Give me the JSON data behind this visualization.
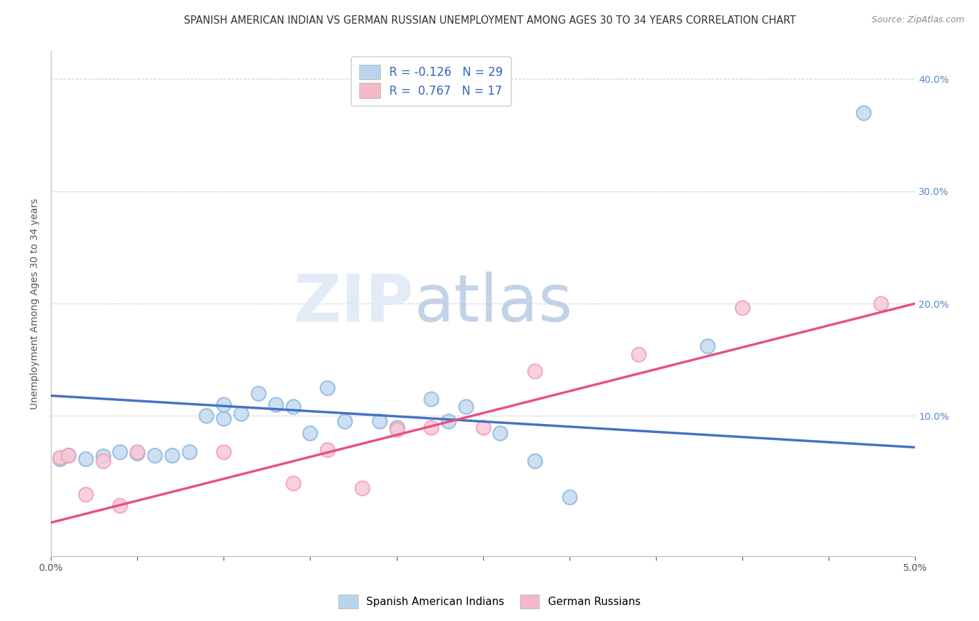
{
  "title": "SPANISH AMERICAN INDIAN VS GERMAN RUSSIAN UNEMPLOYMENT AMONG AGES 30 TO 34 YEARS CORRELATION CHART",
  "source": "Source: ZipAtlas.com",
  "ylabel": "Unemployment Among Ages 30 to 34 years",
  "ytick_labels": [
    "10.0%",
    "20.0%",
    "30.0%",
    "40.0%"
  ],
  "ytick_values": [
    0.1,
    0.2,
    0.3,
    0.4
  ],
  "xmin": 0.0,
  "xmax": 0.05,
  "ymin": -0.025,
  "ymax": 0.425,
  "blue_scatter_x": [
    0.0005,
    0.001,
    0.002,
    0.003,
    0.004,
    0.005,
    0.006,
    0.007,
    0.008,
    0.009,
    0.01,
    0.01,
    0.011,
    0.012,
    0.013,
    0.014,
    0.015,
    0.016,
    0.017,
    0.019,
    0.02,
    0.022,
    0.023,
    0.024,
    0.026,
    0.028,
    0.03,
    0.038,
    0.047
  ],
  "blue_scatter_y": [
    0.062,
    0.065,
    0.062,
    0.064,
    0.068,
    0.067,
    0.065,
    0.065,
    0.068,
    0.1,
    0.098,
    0.11,
    0.102,
    0.12,
    0.11,
    0.108,
    0.085,
    0.125,
    0.095,
    0.095,
    0.09,
    0.115,
    0.095,
    0.108,
    0.085,
    0.06,
    0.028,
    0.162,
    0.37
  ],
  "pink_scatter_x": [
    0.0005,
    0.001,
    0.002,
    0.003,
    0.004,
    0.005,
    0.01,
    0.014,
    0.016,
    0.018,
    0.02,
    0.022,
    0.025,
    0.028,
    0.034,
    0.04,
    0.048
  ],
  "pink_scatter_y": [
    0.063,
    0.065,
    0.03,
    0.06,
    0.02,
    0.068,
    0.068,
    0.04,
    0.07,
    0.036,
    0.088,
    0.09,
    0.09,
    0.14,
    0.155,
    0.196,
    0.2
  ],
  "blue_line_x": [
    0.0,
    0.05
  ],
  "blue_line_y": [
    0.118,
    0.072
  ],
  "pink_line_x": [
    0.0,
    0.05
  ],
  "pink_line_y": [
    0.005,
    0.2
  ],
  "blue_scatter_color": "#8db8e0",
  "pink_scatter_color": "#f0a0b8",
  "blue_scatter_face": "#c5daf0",
  "pink_scatter_face": "#f8c8d8",
  "blue_line_color": "#4472c4",
  "pink_line_color": "#e85080",
  "legend_blue_face": "#bad4ed",
  "legend_pink_face": "#f4b8c8",
  "watermark_zip_color": "#ccd8ee",
  "watermark_atlas_color": "#ccd8ee",
  "grid_color": "#d0d0d0",
  "title_fontsize": 10.5,
  "source_fontsize": 9,
  "axis_label_fontsize": 10,
  "tick_fontsize": 10,
  "right_tick_color": "#5588cc",
  "legend_text_color": "#3366bb"
}
